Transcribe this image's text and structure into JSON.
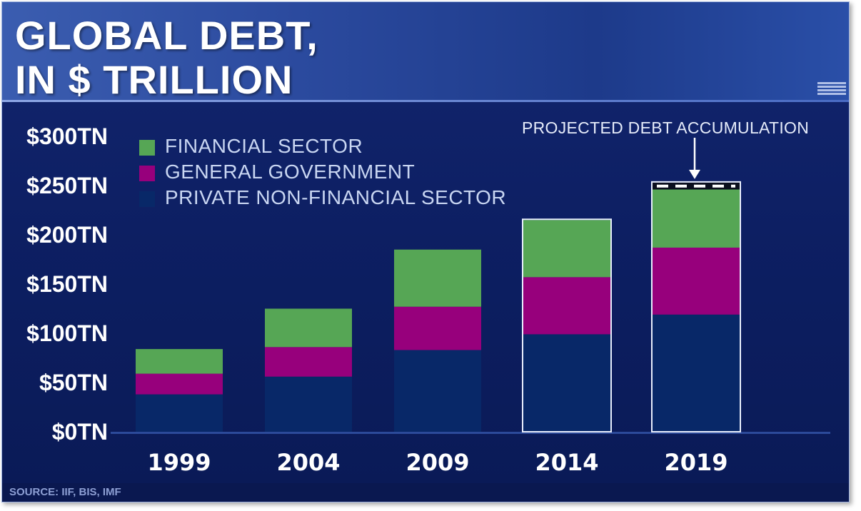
{
  "title": {
    "line1": "GLOBAL DEBT,",
    "line2": "IN $ TRILLION"
  },
  "source": "SOURCE: IIF, BIS, IMF",
  "annotation": "PROJECTED DEBT ACCUMULATION",
  "colors": {
    "financial": "#56a655",
    "government": "#97007c",
    "private": "#082868",
    "projected_outline": "#ffffff"
  },
  "chart_data": {
    "type": "bar",
    "stacked": true,
    "categories": [
      "1999",
      "2004",
      "2009",
      "2014",
      "2019"
    ],
    "series": [
      {
        "name": "PRIVATE NON-FINANCIAL SECTOR",
        "values": [
          38,
          56,
          83,
          99,
          119
        ]
      },
      {
        "name": "GENERAL GOVERNMENT",
        "values": [
          21,
          30,
          44,
          58,
          68
        ]
      },
      {
        "name": "FINANCIAL SECTOR",
        "values": [
          25,
          39,
          58,
          58,
          59
        ]
      }
    ],
    "projected": {
      "category": "2019",
      "label": "PROJECTED DEBT ACCUMULATION",
      "value": 7
    },
    "ylim": [
      0,
      300
    ],
    "yticks": [
      0,
      50,
      100,
      150,
      200,
      250,
      300
    ],
    "ytick_labels": [
      "$0TN",
      "$50TN",
      "$100TN",
      "$150TN",
      "$200TN",
      "$250TN",
      "$300TN"
    ],
    "legend_position": "top-left",
    "grid": false
  }
}
